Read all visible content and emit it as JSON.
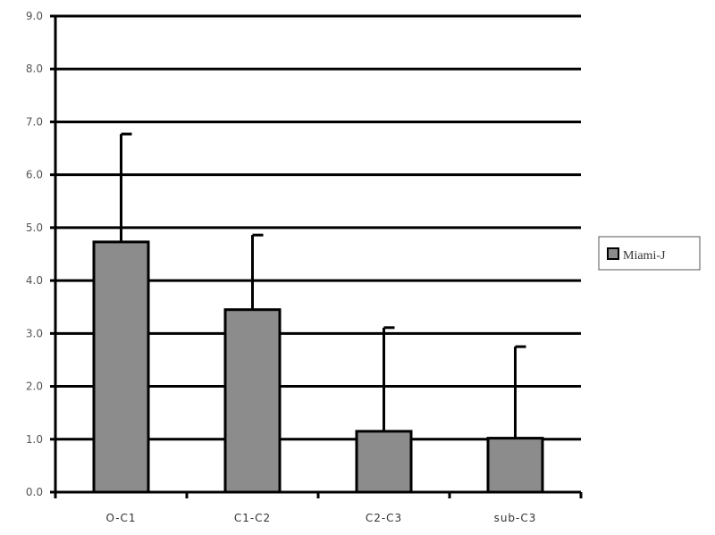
{
  "chart_data": {
    "type": "bar",
    "title": "",
    "xlabel": "",
    "ylabel": "",
    "categories": [
      "O-C1",
      "C1-C2",
      "C2-C3",
      "sub-C3"
    ],
    "series": [
      {
        "name": "Miami-J",
        "values": [
          4.73,
          3.45,
          1.15,
          1.02
        ],
        "error_upper": [
          6.77,
          4.86,
          3.11,
          2.75
        ],
        "color": "#8c8c8c"
      }
    ],
    "ylim": [
      0,
      9
    ],
    "yticks": [
      "0.0",
      "1.0",
      "2.0",
      "3.0",
      "4.0",
      "5.0",
      "6.0",
      "7.0",
      "8.0",
      "9.0"
    ],
    "grid": true,
    "legend": "right"
  }
}
